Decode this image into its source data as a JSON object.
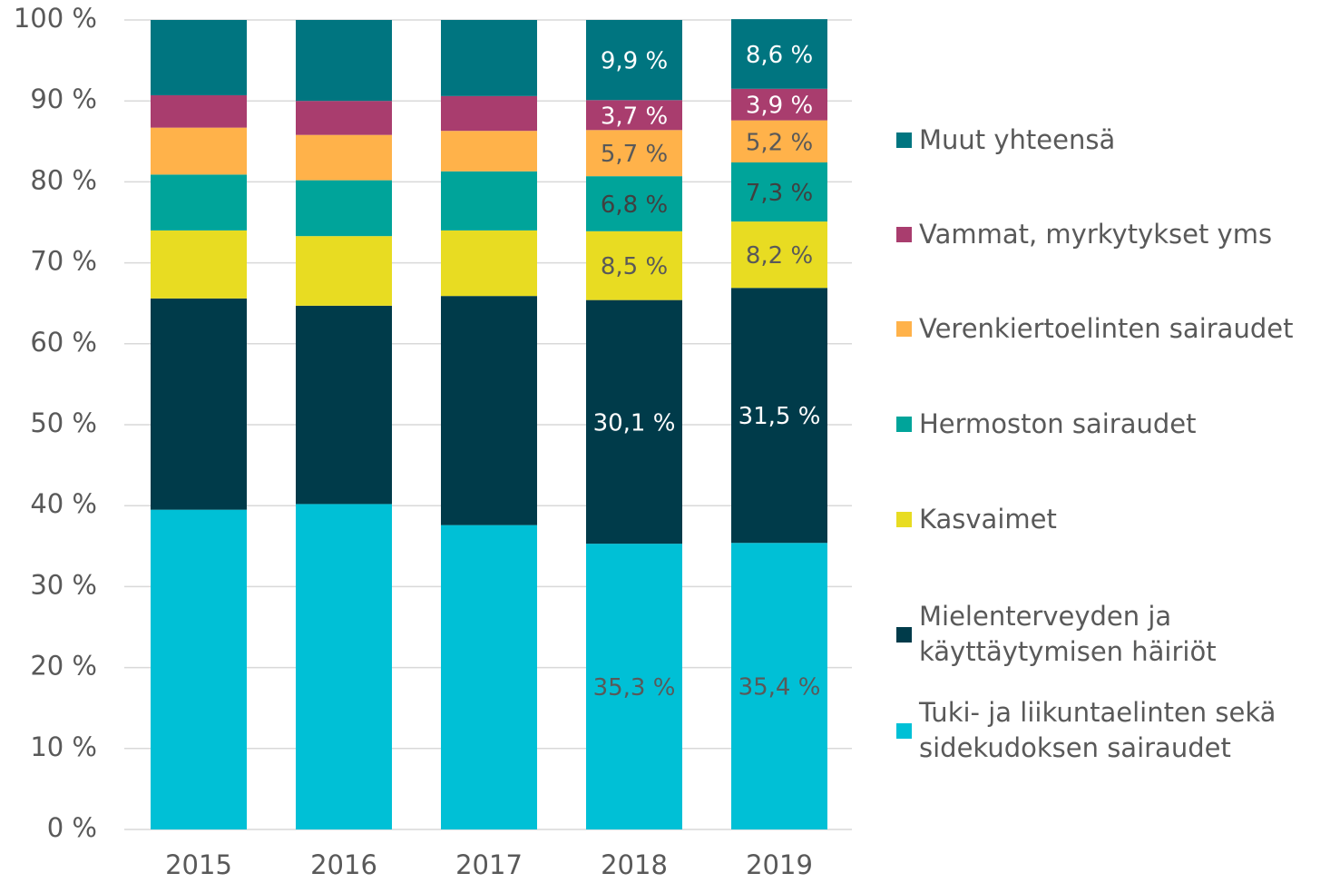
{
  "chart_data": {
    "type": "stacked_bar",
    "categories": [
      "2015",
      "2016",
      "2017",
      "2018",
      "2019"
    ],
    "series": [
      {
        "name": "Tuki- ja liikuntaelinten sekä sidekudoksen sairaudet",
        "color": "#00c0d6",
        "label_color": "#595959",
        "values": [
          39.5,
          40.2,
          37.6,
          35.3,
          35.4
        ],
        "value_labels": [
          null,
          null,
          null,
          "35,3 %",
          "35,4 %"
        ]
      },
      {
        "name": "Mielenterveyden ja käyttäytymisen häiriöt",
        "color": "#003b4a",
        "label_color": "#ffffff",
        "values": [
          26.1,
          24.5,
          28.3,
          30.1,
          31.5
        ],
        "value_labels": [
          null,
          null,
          null,
          "30,1 %",
          "31,5 %"
        ]
      },
      {
        "name": "Kasvaimet",
        "color": "#e8dc22",
        "label_color": "#595959",
        "values": [
          8.4,
          8.6,
          8.1,
          8.5,
          8.2
        ],
        "value_labels": [
          null,
          null,
          null,
          "8,5 %",
          "8,2 %"
        ]
      },
      {
        "name": "Hermoston sairaudet",
        "color": "#00a49a",
        "label_color": "#404040",
        "values": [
          6.9,
          6.9,
          7.3,
          6.8,
          7.3
        ],
        "value_labels": [
          null,
          null,
          null,
          "6,8 %",
          "7,3 %"
        ]
      },
      {
        "name": "Verenkiertoelinten sairaudet",
        "color": "#ffb24a",
        "label_color": "#595959",
        "values": [
          5.8,
          5.6,
          5.0,
          5.7,
          5.2
        ],
        "value_labels": [
          null,
          null,
          null,
          "5,7 %",
          "5,2 %"
        ]
      },
      {
        "name": "Vammat, myrkytykset yms",
        "color": "#a93d6e",
        "label_color": "#ffffff",
        "values": [
          4.0,
          4.2,
          4.3,
          3.7,
          3.9
        ],
        "value_labels": [
          null,
          null,
          null,
          "3,7 %",
          "3,9 %"
        ]
      },
      {
        "name": "Muut yhteensä",
        "color": "#007580",
        "label_color": "#ffffff",
        "values": [
          9.3,
          10.0,
          9.4,
          9.9,
          8.6
        ],
        "value_labels": [
          null,
          null,
          null,
          "9,9 %",
          "8,6 %"
        ]
      }
    ],
    "ylim": [
      0,
      100
    ],
    "yticks": [
      {
        "value": 0,
        "label": "0 %"
      },
      {
        "value": 10,
        "label": "10 %"
      },
      {
        "value": 20,
        "label": "20 %"
      },
      {
        "value": 30,
        "label": "30 %"
      },
      {
        "value": 40,
        "label": "40 %"
      },
      {
        "value": 50,
        "label": "50 %"
      },
      {
        "value": 60,
        "label": "60 %"
      },
      {
        "value": 70,
        "label": "70 %"
      },
      {
        "value": 80,
        "label": "80 %"
      },
      {
        "value": 90,
        "label": "90 %"
      },
      {
        "value": 100,
        "label": "100 %"
      }
    ],
    "grid": true,
    "legend": "right"
  }
}
